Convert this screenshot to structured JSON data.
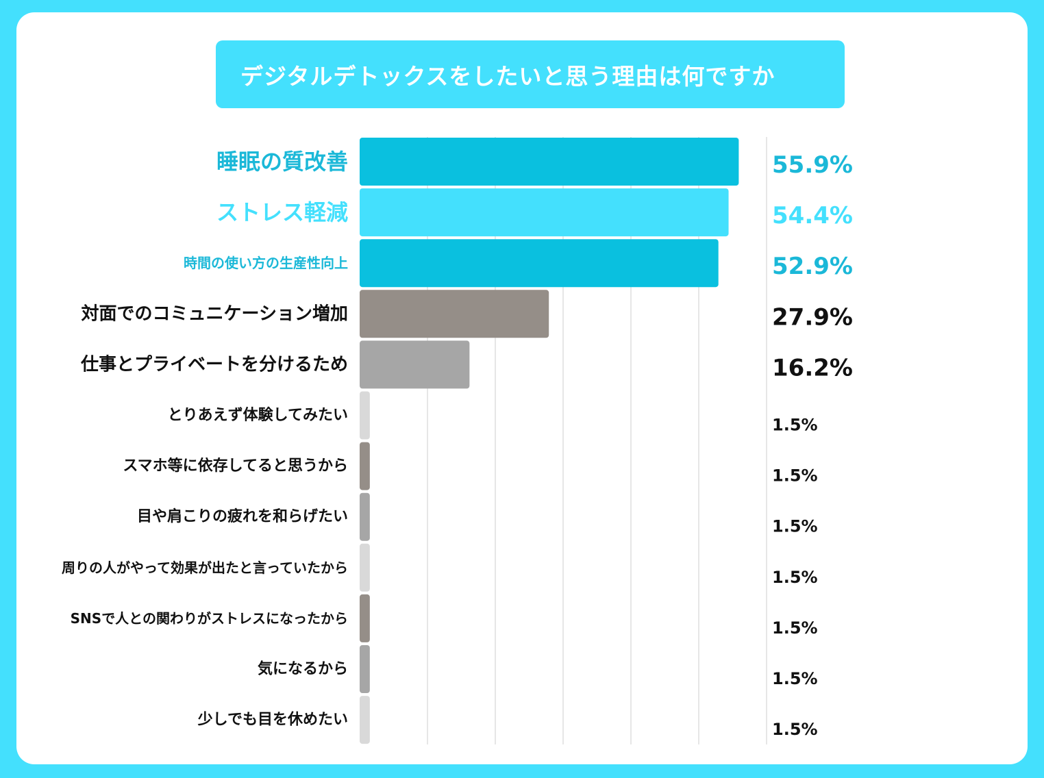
{
  "chart_data": {
    "type": "bar",
    "orientation": "horizontal",
    "title": "デジタルデトックスをしたいと思う理由は何ですか",
    "xlabel": "",
    "ylabel": "",
    "grid": true,
    "legend": "none",
    "xlim": [
      0,
      60
    ],
    "categories": [
      "睡眠の質改善",
      "ストレス軽減",
      "時間の使い方の生産性向上",
      "対面でのコミュニケーション増加",
      "仕事とプライベートを分けるため",
      "とりあえず体験してみたい",
      "スマホ等に依存してると思うから",
      "目や肩こりの疲れを和らげたい",
      "周りの人がやって効果が出たと言っていたから",
      "SNSで人との関わりがストレスになったから",
      "気になるから",
      "少しでも目を休めたい"
    ],
    "values": [
      55.9,
      54.4,
      52.9,
      27.9,
      16.2,
      1.5,
      1.5,
      1.5,
      1.5,
      1.5,
      1.5,
      1.5
    ],
    "value_labels": [
      "55.9%",
      "54.4%",
      "52.9%",
      "27.9%",
      "16.2%",
      "1.5%",
      "1.5%",
      "1.5%",
      "1.5%",
      "1.5%",
      "1.5%",
      "1.5%"
    ],
    "bar_colors": [
      "#0ac0df",
      "#44e0fd",
      "#0ac0df",
      "#958e88",
      "#a6a6a6",
      "#d9d9d9",
      "#958e88",
      "#a6a6a6",
      "#d9d9d9",
      "#958e88",
      "#a6a6a6",
      "#d9d9d9"
    ],
    "label_colors": [
      "#1bb8d8",
      "#44e0fd",
      "#1bb8d8",
      "#111111",
      "#111111",
      "#111111",
      "#111111",
      "#111111",
      "#111111",
      "#111111",
      "#111111",
      "#111111"
    ],
    "value_colors": [
      "#1bb8d8",
      "#44e0fd",
      "#1bb8d8",
      "#111111",
      "#111111",
      "#111111",
      "#111111",
      "#111111",
      "#111111",
      "#111111",
      "#111111",
      "#111111"
    ],
    "grid_color": "#cccccc"
  }
}
